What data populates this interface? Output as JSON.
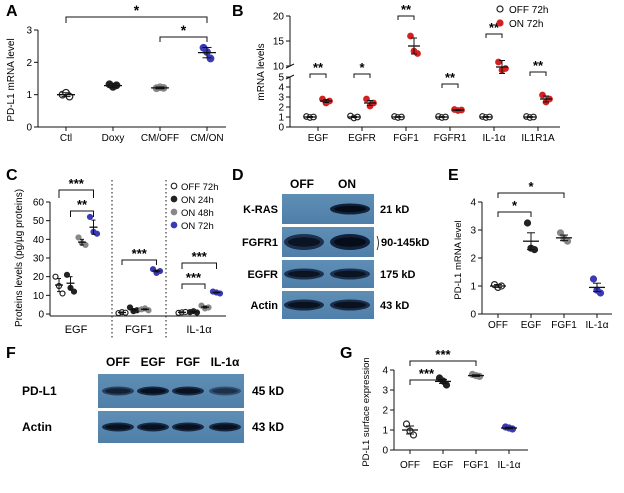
{
  "panel_letters": {
    "A": "A",
    "B": "B",
    "C": "C",
    "D": "D",
    "E": "E",
    "F": "F",
    "G": "G"
  },
  "chart_data": [
    {
      "panel": "A",
      "type": "scatter",
      "ylabel": "PD-L1 mRNA level",
      "ylim": [
        0,
        3
      ],
      "yticks": [
        0,
        1,
        2,
        3
      ],
      "categories": [
        "Ctl",
        "Doxy",
        "CM/OFF",
        "CM/ON"
      ],
      "points": [
        [
          1.0,
          1.06,
          0.94
        ],
        [
          1.32,
          1.24,
          1.29
        ],
        [
          1.2,
          1.23,
          1.21
        ],
        [
          2.45,
          2.32,
          2.12
        ]
      ],
      "means": [
        1.0,
        1.28,
        1.21,
        2.3
      ],
      "errors": [
        0.06,
        0.06,
        0.03,
        0.16
      ],
      "point_colors": [
        "#222222",
        "#222222",
        "#888888",
        "#3a3ab8"
      ],
      "significance": [
        {
          "from": 0,
          "to": 3,
          "label": "*"
        },
        {
          "from": 2,
          "to": 3,
          "label": "*"
        }
      ]
    },
    {
      "panel": "B",
      "type": "scatter",
      "ylabel": "mRNA levels",
      "yticks": [
        0,
        1,
        2,
        3,
        4,
        5,
        10,
        15,
        20
      ],
      "categories": [
        "EGF",
        "EGFR",
        "FGF1",
        "FGFR1",
        "IL-1α",
        "IL1R1A"
      ],
      "legend": [
        "OFF 72h",
        "ON 72h"
      ],
      "legend_position": "top-right",
      "series": [
        {
          "name": "OFF 72h",
          "color": "#222222",
          "points": [
            [
              1.05,
              0.95,
              1.0
            ],
            [
              1.1,
              0.9,
              1.0
            ],
            [
              1.05,
              0.95,
              1.0
            ],
            [
              1.05,
              0.95,
              1.0
            ],
            [
              1.05,
              0.95,
              1.0
            ],
            [
              1.05,
              0.95,
              1.0
            ]
          ],
          "means": [
            1.0,
            1.0,
            1.0,
            1.0,
            1.0,
            1.0
          ],
          "errors": [
            0.05,
            0.06,
            0.04,
            0.04,
            0.04,
            0.04
          ]
        },
        {
          "name": "ON 72h",
          "color": "#d42020",
          "points": [
            [
              2.8,
              2.4,
              2.6
            ],
            [
              2.8,
              2.1,
              2.4
            ],
            [
              16.0,
              13.0,
              12.5
            ],
            [
              1.75,
              1.65,
              1.7
            ],
            [
              10.8,
              9.2,
              9.5
            ],
            [
              3.2,
              2.5,
              2.8
            ]
          ],
          "means": [
            2.6,
            2.4,
            14.0,
            1.7,
            9.8,
            2.8
          ],
          "errors": [
            0.15,
            0.25,
            1.6,
            0.05,
            1.3,
            0.3
          ]
        }
      ],
      "significance": [
        "**",
        "*",
        "**",
        "**",
        "**",
        "**"
      ]
    },
    {
      "panel": "C",
      "type": "scatter",
      "ylabel": "Proteins levels (pg/µg proteins)",
      "ylim": [
        0,
        60
      ],
      "yticks": [
        0,
        10,
        20,
        30,
        40,
        50,
        60
      ],
      "categories": [
        "EGF",
        "FGF1",
        "IL-1α"
      ],
      "legend": [
        "OFF 72h",
        "ON 24h",
        "ON 48h",
        "ON 72h"
      ],
      "legend_position": "top-right",
      "series": [
        {
          "name": "OFF 72h",
          "color": "#222222",
          "open": true,
          "points": [
            [
              20,
              15,
              11
            ],
            [
              0.5,
              1.0,
              0.7
            ],
            [
              0.6,
              0.9,
              1.1
            ]
          ],
          "means": [
            15.5,
            0.8,
            0.9
          ],
          "errors": [
            3.5,
            0.3,
            0.3
          ]
        },
        {
          "name": "ON 24h",
          "color": "#222222",
          "open": false,
          "points": [
            [
              21,
              14,
              12
            ],
            [
              3.5,
              1.5,
              2.0
            ],
            [
              1.0,
              1.5,
              0.8
            ]
          ],
          "means": [
            16.5,
            2.3,
            1.1
          ],
          "errors": [
            3.5,
            0.6,
            0.3
          ]
        },
        {
          "name": "ON 48h",
          "color": "#888888",
          "open": false,
          "points": [
            [
              41,
              38,
              37
            ],
            [
              2.5,
              3.0,
              2.0
            ],
            [
              4.5,
              3.0,
              3.5
            ]
          ],
          "means": [
            38.5,
            2.5,
            3.7
          ],
          "errors": [
            1.5,
            0.3,
            0.5
          ]
        },
        {
          "name": "ON 72h",
          "color": "#3a3ab8",
          "open": false,
          "points": [
            [
              52,
              44,
              43
            ],
            [
              24,
              22,
              23
            ],
            [
              12,
              11.5,
              11
            ]
          ],
          "means": [
            46.5,
            23.0,
            11.5
          ],
          "errors": [
            3.8,
            0.5,
            0.3
          ]
        }
      ],
      "significance": [
        {
          "group": 0,
          "from": 0,
          "to": 3,
          "label": "***"
        },
        {
          "group": 0,
          "from": 1,
          "to": 3,
          "label": "**"
        },
        {
          "group": 1,
          "from": 0,
          "to": 3,
          "label": "***"
        },
        {
          "group": 2,
          "from": 0,
          "to": 3,
          "label": "***"
        },
        {
          "group": 2,
          "from": 0,
          "to": 2,
          "label": "***"
        }
      ]
    },
    {
      "panel": "E",
      "type": "scatter",
      "ylabel": "PD-L1 mRNA level",
      "ylim": [
        0,
        4
      ],
      "yticks": [
        0,
        1,
        2,
        3,
        4
      ],
      "categories": [
        "OFF",
        "EGF",
        "FGF1",
        "IL-1α"
      ],
      "points": [
        [
          1.05,
          0.95,
          1.0
        ],
        [
          3.25,
          2.35,
          2.3
        ],
        [
          2.9,
          2.7,
          2.6
        ],
        [
          1.25,
          0.85,
          0.75
        ]
      ],
      "means": [
        1.0,
        2.6,
        2.72,
        0.95
      ],
      "errors": [
        0.05,
        0.3,
        0.1,
        0.15
      ],
      "point_colors": [
        "#222222",
        "#222222",
        "#888888",
        "#3a3ab8"
      ],
      "significance": [
        {
          "from": 0,
          "to": 1,
          "label": "*"
        },
        {
          "from": 0,
          "to": 2,
          "label": "*"
        }
      ]
    },
    {
      "panel": "G",
      "type": "scatter",
      "ylabel": "PD-L1 surface expression",
      "ylim": [
        0,
        4
      ],
      "yticks": [
        0,
        1,
        2,
        3,
        4
      ],
      "categories": [
        "OFF",
        "EGF",
        "FGF1",
        "IL-1α"
      ],
      "points": [
        [
          1.3,
          0.95,
          0.75
        ],
        [
          3.6,
          3.45,
          3.25
        ],
        [
          3.78,
          3.72,
          3.68
        ],
        [
          1.15,
          1.1,
          1.05
        ]
      ],
      "means": [
        1.0,
        3.43,
        3.72,
        1.1
      ],
      "errors": [
        0.2,
        0.1,
        0.04,
        0.04
      ],
      "point_colors": [
        "#222222",
        "#222222",
        "#888888",
        "#3a3ab8"
      ],
      "significance": [
        {
          "from": 0,
          "to": 1,
          "label": "***"
        },
        {
          "from": 0,
          "to": 2,
          "label": "***"
        }
      ]
    }
  ],
  "blot_D": {
    "lane_labels": [
      "OFF",
      "ON"
    ],
    "rows": [
      {
        "name": "K-RAS",
        "size": "21 kD",
        "intensity": [
          0.05,
          0.95
        ]
      },
      {
        "name": "FGFR1",
        "size": "90-145kD",
        "intensity": [
          0.75,
          0.95
        ]
      },
      {
        "name": "EGFR",
        "size": "175 kD",
        "intensity": [
          0.75,
          0.75
        ]
      },
      {
        "name": "Actin",
        "size": "43 kD",
        "intensity": [
          0.8,
          0.8
        ]
      }
    ]
  },
  "blot_F": {
    "lane_labels": [
      "OFF",
      "EGF",
      "FGF",
      "IL-1α"
    ],
    "rows": [
      {
        "name": "PD-L1",
        "size": "45 kD",
        "intensity": [
          0.55,
          0.85,
          0.8,
          0.35
        ]
      },
      {
        "name": "Actin",
        "size": "43 kD",
        "intensity": [
          0.85,
          0.85,
          0.85,
          0.85
        ]
      }
    ]
  }
}
